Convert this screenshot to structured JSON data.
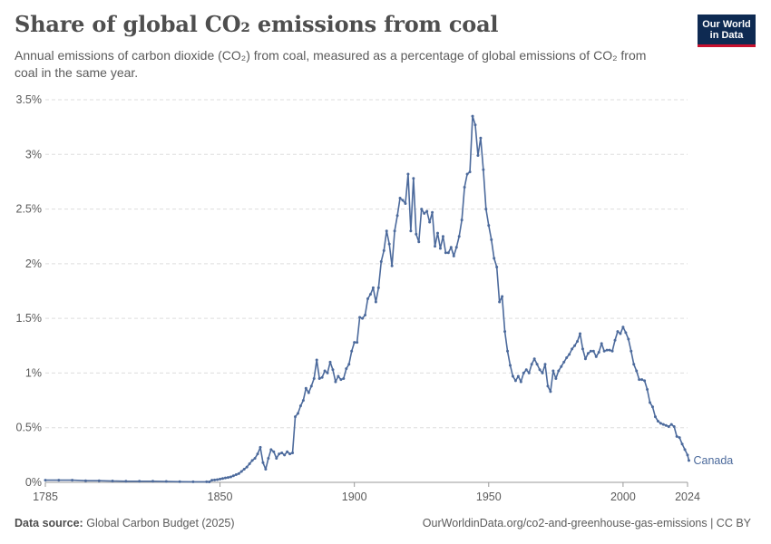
{
  "header": {
    "title": "Share of global CO₂ emissions from coal",
    "subtitle": "Annual emissions of carbon dioxide (CO₂) from coal, measured as a percentage of global emissions of CO₂ from coal in the same year."
  },
  "logo": {
    "line1": "Our World",
    "line2": "in Data"
  },
  "footer": {
    "source_label": "Data source:",
    "source_value": "Global Carbon Budget (2025)",
    "url": "OurWorldinData.org/co2-and-greenhouse-gas-emissions",
    "separator": " | ",
    "license": "CC BY"
  },
  "colors": {
    "series": "#4c6a9c",
    "grid": "#dddddd",
    "axis": "#999999"
  },
  "chart_data": {
    "type": "line",
    "title": "Share of global CO₂ emissions from coal",
    "xlabel": "",
    "ylabel": "",
    "xlim": [
      1785,
      2024
    ],
    "ylim": [
      0,
      3.5
    ],
    "x_ticks": [
      1785,
      1850,
      1900,
      1950,
      2000,
      2024
    ],
    "y_ticks": [
      0,
      0.5,
      1,
      1.5,
      2,
      2.5,
      3,
      3.5
    ],
    "y_tick_labels": [
      "0%",
      "0.5%",
      "1%",
      "1.5%",
      "2%",
      "2.5%",
      "3%",
      "3.5%"
    ],
    "grid": "horizontal dashed",
    "series": [
      {
        "name": "Canada",
        "points": [
          [
            1785,
            0.02
          ],
          [
            1790,
            0.02
          ],
          [
            1795,
            0.02
          ],
          [
            1800,
            0.015
          ],
          [
            1805,
            0.015
          ],
          [
            1810,
            0.012
          ],
          [
            1815,
            0.01
          ],
          [
            1820,
            0.01
          ],
          [
            1825,
            0.01
          ],
          [
            1830,
            0.008
          ],
          [
            1835,
            0.006
          ],
          [
            1840,
            0.005
          ],
          [
            1845,
            0.005
          ],
          [
            1846,
            0.004
          ],
          [
            1847,
            0.02
          ],
          [
            1848,
            0.022
          ],
          [
            1849,
            0.025
          ],
          [
            1850,
            0.03
          ],
          [
            1851,
            0.035
          ],
          [
            1852,
            0.04
          ],
          [
            1853,
            0.045
          ],
          [
            1854,
            0.05
          ],
          [
            1855,
            0.06
          ],
          [
            1856,
            0.07
          ],
          [
            1857,
            0.08
          ],
          [
            1858,
            0.1
          ],
          [
            1859,
            0.12
          ],
          [
            1860,
            0.14
          ],
          [
            1861,
            0.17
          ],
          [
            1862,
            0.2
          ],
          [
            1863,
            0.22
          ],
          [
            1864,
            0.26
          ],
          [
            1865,
            0.32
          ],
          [
            1866,
            0.18
          ],
          [
            1867,
            0.12
          ],
          [
            1868,
            0.22
          ],
          [
            1869,
            0.3
          ],
          [
            1870,
            0.28
          ],
          [
            1871,
            0.22
          ],
          [
            1872,
            0.26
          ],
          [
            1873,
            0.27
          ],
          [
            1874,
            0.25
          ],
          [
            1875,
            0.28
          ],
          [
            1876,
            0.26
          ],
          [
            1877,
            0.27
          ],
          [
            1878,
            0.6
          ],
          [
            1879,
            0.63
          ],
          [
            1880,
            0.7
          ],
          [
            1881,
            0.75
          ],
          [
            1882,
            0.86
          ],
          [
            1883,
            0.82
          ],
          [
            1884,
            0.88
          ],
          [
            1885,
            0.95
          ],
          [
            1886,
            1.12
          ],
          [
            1887,
            0.95
          ],
          [
            1888,
            0.96
          ],
          [
            1889,
            1.02
          ],
          [
            1890,
            1.0
          ],
          [
            1891,
            1.1
          ],
          [
            1892,
            1.03
          ],
          [
            1893,
            0.92
          ],
          [
            1894,
            0.97
          ],
          [
            1895,
            0.94
          ],
          [
            1896,
            0.95
          ],
          [
            1897,
            1.04
          ],
          [
            1898,
            1.08
          ],
          [
            1899,
            1.2
          ],
          [
            1900,
            1.28
          ],
          [
            1901,
            1.28
          ],
          [
            1902,
            1.51
          ],
          [
            1903,
            1.5
          ],
          [
            1904,
            1.53
          ],
          [
            1905,
            1.68
          ],
          [
            1906,
            1.72
          ],
          [
            1907,
            1.78
          ],
          [
            1908,
            1.65
          ],
          [
            1909,
            1.78
          ],
          [
            1910,
            2.02
          ],
          [
            1911,
            2.12
          ],
          [
            1912,
            2.3
          ],
          [
            1913,
            2.18
          ],
          [
            1914,
            1.98
          ],
          [
            1915,
            2.3
          ],
          [
            1916,
            2.44
          ],
          [
            1917,
            2.6
          ],
          [
            1918,
            2.58
          ],
          [
            1919,
            2.55
          ],
          [
            1920,
            2.82
          ],
          [
            1921,
            2.3
          ],
          [
            1922,
            2.78
          ],
          [
            1923,
            2.27
          ],
          [
            1924,
            2.2
          ],
          [
            1925,
            2.5
          ],
          [
            1926,
            2.46
          ],
          [
            1927,
            2.48
          ],
          [
            1928,
            2.38
          ],
          [
            1929,
            2.47
          ],
          [
            1930,
            2.16
          ],
          [
            1931,
            2.28
          ],
          [
            1932,
            2.14
          ],
          [
            1933,
            2.25
          ],
          [
            1934,
            2.1
          ],
          [
            1935,
            2.1
          ],
          [
            1936,
            2.15
          ],
          [
            1937,
            2.07
          ],
          [
            1938,
            2.15
          ],
          [
            1939,
            2.25
          ],
          [
            1940,
            2.4
          ],
          [
            1941,
            2.7
          ],
          [
            1942,
            2.82
          ],
          [
            1943,
            2.84
          ],
          [
            1944,
            3.35
          ],
          [
            1945,
            3.27
          ],
          [
            1946,
            2.99
          ],
          [
            1947,
            3.15
          ],
          [
            1948,
            2.86
          ],
          [
            1949,
            2.5
          ],
          [
            1950,
            2.35
          ],
          [
            1951,
            2.22
          ],
          [
            1952,
            2.05
          ],
          [
            1953,
            1.97
          ],
          [
            1954,
            1.65
          ],
          [
            1955,
            1.7
          ],
          [
            1956,
            1.38
          ],
          [
            1957,
            1.2
          ],
          [
            1958,
            1.07
          ],
          [
            1959,
            0.97
          ],
          [
            1960,
            0.93
          ],
          [
            1961,
            0.97
          ],
          [
            1962,
            0.92
          ],
          [
            1963,
            1.0
          ],
          [
            1964,
            1.03
          ],
          [
            1965,
            1.0
          ],
          [
            1966,
            1.08
          ],
          [
            1967,
            1.13
          ],
          [
            1968,
            1.08
          ],
          [
            1969,
            1.03
          ],
          [
            1970,
            1.0
          ],
          [
            1971,
            1.08
          ],
          [
            1972,
            0.88
          ],
          [
            1973,
            0.83
          ],
          [
            1974,
            1.02
          ],
          [
            1975,
            0.95
          ],
          [
            1976,
            1.02
          ],
          [
            1977,
            1.06
          ],
          [
            1978,
            1.1
          ],
          [
            1979,
            1.14
          ],
          [
            1980,
            1.17
          ],
          [
            1981,
            1.22
          ],
          [
            1982,
            1.25
          ],
          [
            1983,
            1.29
          ],
          [
            1984,
            1.36
          ],
          [
            1985,
            1.22
          ],
          [
            1986,
            1.13
          ],
          [
            1987,
            1.18
          ],
          [
            1988,
            1.2
          ],
          [
            1989,
            1.2
          ],
          [
            1990,
            1.15
          ],
          [
            1991,
            1.19
          ],
          [
            1992,
            1.27
          ],
          [
            1993,
            1.2
          ],
          [
            1994,
            1.21
          ],
          [
            1995,
            1.21
          ],
          [
            1996,
            1.2
          ],
          [
            1997,
            1.3
          ],
          [
            1998,
            1.38
          ],
          [
            1999,
            1.36
          ],
          [
            2000,
            1.42
          ],
          [
            2001,
            1.37
          ],
          [
            2002,
            1.31
          ],
          [
            2003,
            1.2
          ],
          [
            2004,
            1.08
          ],
          [
            2005,
            1.02
          ],
          [
            2006,
            0.94
          ],
          [
            2007,
            0.94
          ],
          [
            2008,
            0.93
          ],
          [
            2009,
            0.85
          ],
          [
            2010,
            0.73
          ],
          [
            2011,
            0.69
          ],
          [
            2012,
            0.6
          ],
          [
            2013,
            0.56
          ],
          [
            2014,
            0.54
          ],
          [
            2015,
            0.53
          ],
          [
            2016,
            0.52
          ],
          [
            2017,
            0.51
          ],
          [
            2018,
            0.53
          ],
          [
            2019,
            0.51
          ],
          [
            2020,
            0.42
          ],
          [
            2021,
            0.41
          ],
          [
            2022,
            0.35
          ],
          [
            2023,
            0.3
          ],
          [
            2024,
            0.25
          ],
          [
            2024.5,
            0.2
          ]
        ]
      }
    ]
  }
}
